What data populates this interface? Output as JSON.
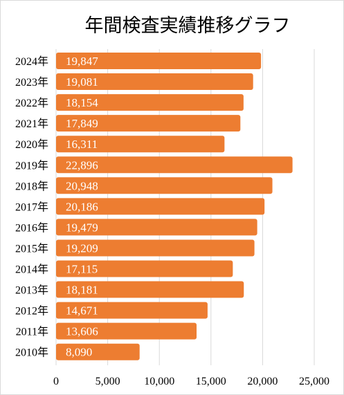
{
  "chart_data": {
    "type": "bar",
    "orientation": "horizontal",
    "title": "年間検査実績推移グラフ",
    "xlabel": "",
    "ylabel": "",
    "categories": [
      "2024年",
      "2023年",
      "2022年",
      "2021年",
      "2020年",
      "2019年",
      "2018年",
      "2017年",
      "2016年",
      "2015年",
      "2014年",
      "2013年",
      "2012年",
      "2011年",
      "2010年"
    ],
    "values": [
      19847,
      19081,
      18154,
      17849,
      16311,
      22896,
      20948,
      20186,
      19479,
      19209,
      17115,
      18181,
      14671,
      13606,
      8090
    ],
    "value_labels": [
      "19,847",
      "19,081",
      "18,154",
      "17,849",
      "16,311",
      "22,896",
      "20,948",
      "20,186",
      "19,479",
      "19,209",
      "17,115",
      "18,181",
      "14,671",
      "13,606",
      "8,090"
    ],
    "xlim": [
      0,
      25000
    ],
    "x_ticks": [
      0,
      5000,
      10000,
      15000,
      20000,
      25000
    ],
    "x_tick_labels": [
      "0",
      "5,000",
      "10,000",
      "15,000",
      "20,000",
      "25,000"
    ],
    "grid": true,
    "legend": "none",
    "colors": {
      "bar": "#ED7D31",
      "grid": "#d9d9d9",
      "text": "#000000",
      "label": "#ffffff"
    }
  }
}
